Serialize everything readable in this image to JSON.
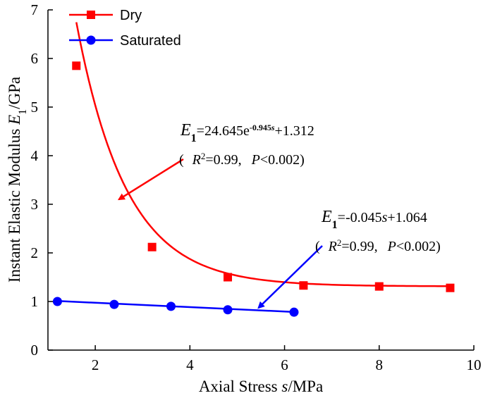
{
  "chart_data": {
    "type": "scatter",
    "xlabel_prefix": "Axial Stress ",
    "xlabel_var": "s",
    "xlabel_suffix": "/MPa",
    "ylabel_prefix": "Instant Elastic Modulus ",
    "ylabel_var": "E",
    "ylabel_sub": "1",
    "ylabel_suffix": "/GPa",
    "xlim": [
      1,
      10
    ],
    "ylim": [
      0,
      7
    ],
    "xticks": [
      2,
      4,
      6,
      8,
      10
    ],
    "yticks": [
      0,
      1,
      2,
      3,
      4,
      5,
      6,
      7
    ],
    "legend": {
      "placement": "top-left",
      "entries": [
        "Dry",
        "Saturated"
      ]
    },
    "series": [
      {
        "name": "Dry",
        "color": "#ff0000",
        "marker": "square",
        "x": [
          1.6,
          3.2,
          4.8,
          6.4,
          8.0,
          9.5
        ],
        "y": [
          5.85,
          2.12,
          1.5,
          1.33,
          1.31,
          1.28
        ],
        "fit": {
          "type": "exponential",
          "a": 24.645,
          "b": -0.945,
          "c": 1.312,
          "x_range": [
            1.6,
            9.5
          ]
        }
      },
      {
        "name": "Saturated",
        "color": "#0000ff",
        "marker": "circle",
        "x": [
          1.2,
          2.4,
          3.6,
          4.8,
          6.2
        ],
        "y": [
          1.0,
          0.94,
          0.9,
          0.83,
          0.78
        ],
        "fit": {
          "type": "linear",
          "slope": -0.045,
          "intercept": 1.064,
          "x_range": [
            1.2,
            6.2
          ]
        }
      }
    ],
    "annotations": [
      {
        "lhs_var": "E",
        "lhs_sub": "1",
        "rhs_base": "=24.645e",
        "rhs_exp": "-0.945",
        "rhs_exp_var": "s",
        "rhs_tail": "+1.312",
        "stats_open": "(",
        "r_label": "R",
        "r_sup": "2",
        "r_value": "=0.99,",
        "p_label": "P",
        "p_value": "<0.002)",
        "arrow_color": "#ff0000",
        "arrow_to": [
          2.5,
          3.1
        ]
      },
      {
        "lhs_var": "E",
        "lhs_sub": "1",
        "rhs_base": "=-0.045",
        "rhs_var": "s",
        "rhs_tail": "+1.064",
        "stats_open": "(",
        "r_label": "R",
        "r_sup": "2",
        "r_value": "=0.99,",
        "p_label": "P",
        "p_value": "<0.002)",
        "arrow_color": "#0000ff",
        "arrow_to": [
          5.45,
          0.87
        ]
      }
    ]
  }
}
